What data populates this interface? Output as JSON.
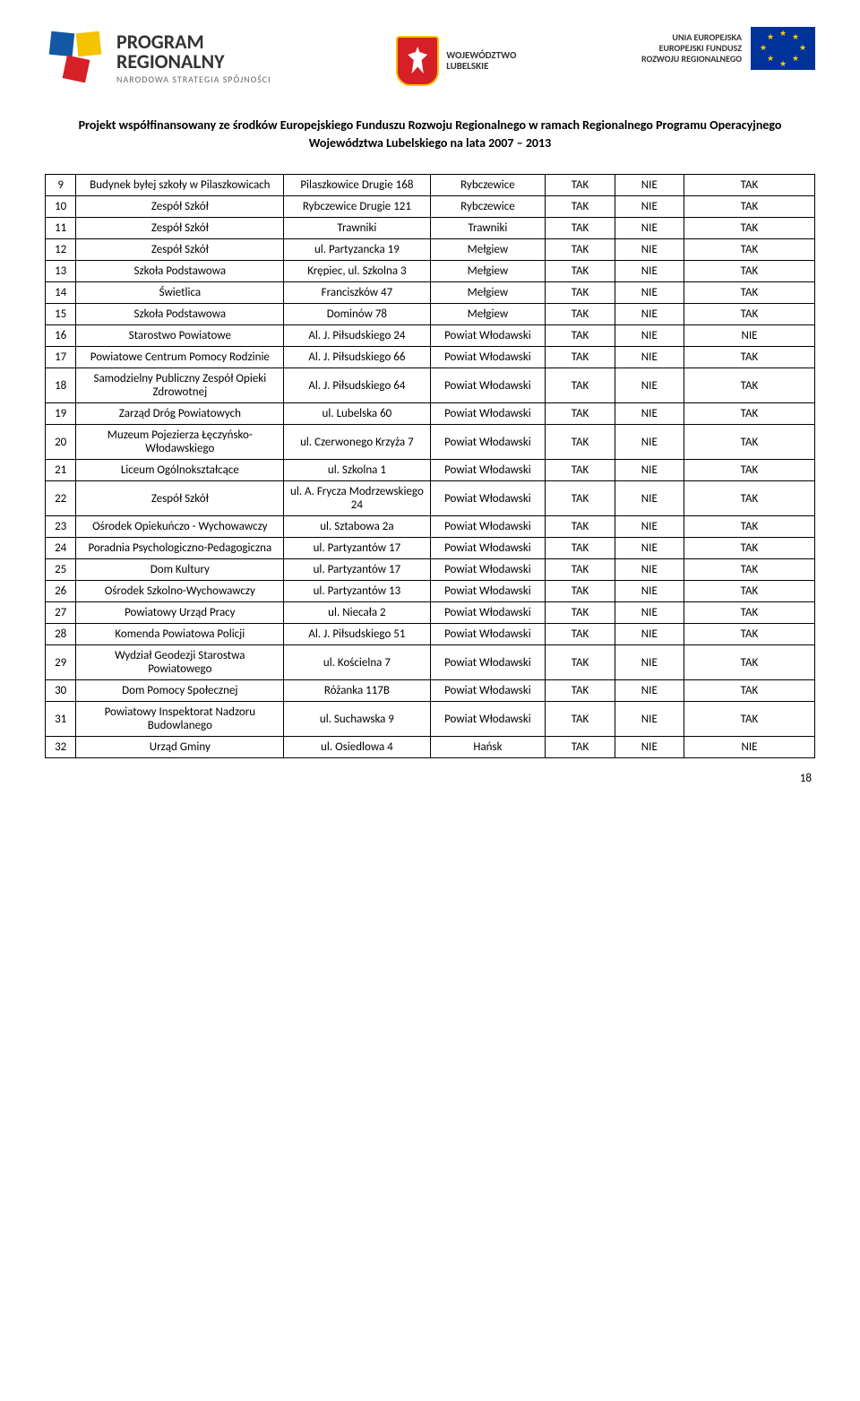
{
  "header": {
    "prog_line1": "PROGRAM",
    "prog_line2": "REGIONALNY",
    "prog_line3": "NARODOWA STRATEGIA SPÓJNOŚCI",
    "woj_line1": "WOJEWÓDZTWO",
    "woj_line2": "LUBELSKIE",
    "eu_line1": "UNIA EUROPEJSKA",
    "eu_line2": "EUROPEJSKI FUNDUSZ",
    "eu_line3": "ROZWOJU REGIONALNEGO"
  },
  "subtitle": "Projekt współfinansowany ze środków Europejskiego Funduszu Rozwoju Regionalnego w ramach Regionalnego Programu Operacyjnego Województwa Lubelskiego na lata 2007 – 2013",
  "rows": [
    {
      "n": "9",
      "name": "Budynek byłej szkoły w Pilaszkowicach",
      "addr": "Pilaszkowice Drugie 168",
      "gmina": "Rybczewice",
      "c1": "TAK",
      "c2": "NIE",
      "c3": "TAK"
    },
    {
      "n": "10",
      "name": "Zespół Szkół",
      "addr": "Rybczewice Drugie 121",
      "gmina": "Rybczewice",
      "c1": "TAK",
      "c2": "NIE",
      "c3": "TAK"
    },
    {
      "n": "11",
      "name": "Zespół Szkół",
      "addr": "Trawniki",
      "gmina": "Trawniki",
      "c1": "TAK",
      "c2": "NIE",
      "c3": "TAK"
    },
    {
      "n": "12",
      "name": "Zespół Szkół",
      "addr": "ul. Partyzancka 19",
      "gmina": "Mełgiew",
      "c1": "TAK",
      "c2": "NIE",
      "c3": "TAK"
    },
    {
      "n": "13",
      "name": "Szkoła Podstawowa",
      "addr": "Krępiec, ul. Szkolna 3",
      "gmina": "Mełgiew",
      "c1": "TAK",
      "c2": "NIE",
      "c3": "TAK"
    },
    {
      "n": "14",
      "name": "Świetlica",
      "addr": "Franciszków 47",
      "gmina": "Mełgiew",
      "c1": "TAK",
      "c2": "NIE",
      "c3": "TAK"
    },
    {
      "n": "15",
      "name": "Szkoła Podstawowa",
      "addr": "Dominów 78",
      "gmina": "Mełgiew",
      "c1": "TAK",
      "c2": "NIE",
      "c3": "TAK"
    },
    {
      "n": "16",
      "name": "Starostwo Powiatowe",
      "addr": "Al. J. Piłsudskiego 24",
      "gmina": "Powiat Włodawski",
      "c1": "TAK",
      "c2": "NIE",
      "c3": "NIE"
    },
    {
      "n": "17",
      "name": "Powiatowe Centrum Pomocy Rodzinie",
      "addr": "Al. J. Piłsudskiego 66",
      "gmina": "Powiat Włodawski",
      "c1": "TAK",
      "c2": "NIE",
      "c3": "TAK"
    },
    {
      "n": "18",
      "name": "Samodzielny Publiczny Zespół Opieki Zdrowotnej",
      "addr": "Al. J. Piłsudskiego 64",
      "gmina": "Powiat Włodawski",
      "c1": "TAK",
      "c2": "NIE",
      "c3": "TAK"
    },
    {
      "n": "19",
      "name": "Zarząd Dróg Powiatowych",
      "addr": "ul. Lubelska 60",
      "gmina": "Powiat Włodawski",
      "c1": "TAK",
      "c2": "NIE",
      "c3": "TAK"
    },
    {
      "n": "20",
      "name": "Muzeum Pojezierza Łęczyńsko- Włodawskiego",
      "addr": "ul. Czerwonego Krzyża 7",
      "gmina": "Powiat Włodawski",
      "c1": "TAK",
      "c2": "NIE",
      "c3": "TAK"
    },
    {
      "n": "21",
      "name": "Liceum Ogólnokształcące",
      "addr": "ul. Szkolna 1",
      "gmina": "Powiat Włodawski",
      "c1": "TAK",
      "c2": "NIE",
      "c3": "TAK"
    },
    {
      "n": "22",
      "name": "Zespół Szkół",
      "addr": "ul. A. Frycza Modrzewskiego 24",
      "gmina": "Powiat Włodawski",
      "c1": "TAK",
      "c2": "NIE",
      "c3": "TAK"
    },
    {
      "n": "23",
      "name": "Ośrodek Opiekuńczo - Wychowawczy",
      "addr": "ul. Sztabowa 2a",
      "gmina": "Powiat Włodawski",
      "c1": "TAK",
      "c2": "NIE",
      "c3": "TAK"
    },
    {
      "n": "24",
      "name": "Poradnia Psychologiczno-Pedagogiczna",
      "addr": "ul. Partyzantów 17",
      "gmina": "Powiat Włodawski",
      "c1": "TAK",
      "c2": "NIE",
      "c3": "TAK"
    },
    {
      "n": "25",
      "name": "Dom Kultury",
      "addr": "ul. Partyzantów 17",
      "gmina": "Powiat Włodawski",
      "c1": "TAK",
      "c2": "NIE",
      "c3": "TAK"
    },
    {
      "n": "26",
      "name": "Ośrodek Szkolno-Wychowawczy",
      "addr": "ul. Partyzantów 13",
      "gmina": "Powiat Włodawski",
      "c1": "TAK",
      "c2": "NIE",
      "c3": "TAK"
    },
    {
      "n": "27",
      "name": "Powiatowy Urząd Pracy",
      "addr": "ul. Niecała 2",
      "gmina": "Powiat Włodawski",
      "c1": "TAK",
      "c2": "NIE",
      "c3": "TAK"
    },
    {
      "n": "28",
      "name": "Komenda Powiatowa Policji",
      "addr": "Al. J. Piłsudskiego 51",
      "gmina": "Powiat Włodawski",
      "c1": "TAK",
      "c2": "NIE",
      "c3": "TAK"
    },
    {
      "n": "29",
      "name": "Wydział Geodezji Starostwa Powiatowego",
      "addr": "ul. Kościelna 7",
      "gmina": "Powiat Włodawski",
      "c1": "TAK",
      "c2": "NIE",
      "c3": "TAK"
    },
    {
      "n": "30",
      "name": "Dom Pomocy Społecznej",
      "addr": "Różanka 117B",
      "gmina": "Powiat Włodawski",
      "c1": "TAK",
      "c2": "NIE",
      "c3": "TAK"
    },
    {
      "n": "31",
      "name": "Powiatowy Inspektorat Nadzoru Budowlanego",
      "addr": "ul. Suchawska 9",
      "gmina": "Powiat Włodawski",
      "c1": "TAK",
      "c2": "NIE",
      "c3": "TAK"
    },
    {
      "n": "32",
      "name": "Urząd Gminy",
      "addr": "ul. Osiedlowa 4",
      "gmina": "Hańsk",
      "c1": "TAK",
      "c2": "NIE",
      "c3": "NIE"
    }
  ],
  "page_number": "18"
}
